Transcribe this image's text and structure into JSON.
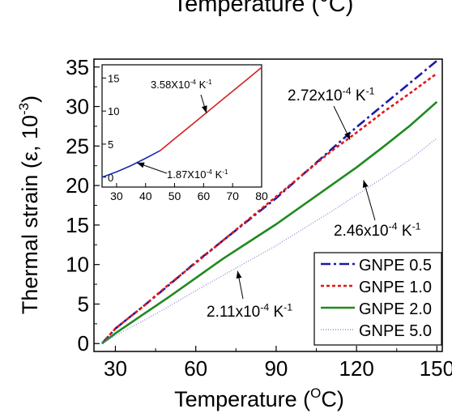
{
  "top_clipped_label": "Temperature (°C)",
  "chart_data": [
    {
      "type": "line",
      "xlabel_main": "Temperature (",
      "xlabel_sup": "O",
      "xlabel_tail": "C)",
      "ylabel": "Thermal strain (ε, 10⁻³)",
      "xlim": [
        22,
        152
      ],
      "ylim": [
        -1,
        36
      ],
      "xticks": [
        30,
        60,
        90,
        120,
        150
      ],
      "yticks": [
        0,
        5,
        10,
        15,
        20,
        25,
        30,
        35
      ],
      "legend_position": "bottom-right",
      "series": [
        {
          "name": "GNPE 0.5",
          "color": "#1a1aa6",
          "dash": "12,4,3,4",
          "x": [
            25,
            30,
            40,
            50,
            60,
            70,
            80,
            90,
            100,
            110,
            120,
            130,
            140,
            150
          ],
          "y": [
            0,
            1.9,
            4.6,
            7.4,
            10.3,
            13.0,
            15.7,
            18.4,
            21.4,
            24.4,
            27.4,
            30.2,
            33.0,
            35.8
          ]
        },
        {
          "name": "GNPE 1.0",
          "color": "#e01818",
          "dash": "4,3",
          "x": [
            25,
            30,
            40,
            50,
            60,
            70,
            80,
            90,
            100,
            110,
            120,
            130,
            140,
            150
          ],
          "y": [
            0,
            1.9,
            4.6,
            7.5,
            10.2,
            13.0,
            15.8,
            18.6,
            21.4,
            24.2,
            26.7,
            29.3,
            31.7,
            34.2
          ]
        },
        {
          "name": "GNPE 2.0",
          "color": "#1f8a1f",
          "dash": "",
          "x": [
            25,
            30,
            40,
            50,
            60,
            70,
            80,
            90,
            100,
            110,
            120,
            130,
            140,
            150
          ],
          "y": [
            0,
            1.3,
            3.6,
            5.9,
            8.3,
            10.7,
            12.9,
            15.1,
            17.5,
            19.9,
            22.3,
            24.9,
            27.6,
            30.6
          ]
        },
        {
          "name": "GNPE 5.0",
          "color": "#9a8ad6",
          "dash": "1,2",
          "x": [
            25,
            30,
            40,
            50,
            60,
            70,
            80,
            90,
            100,
            110,
            120,
            130,
            140,
            150
          ],
          "y": [
            0,
            1.0,
            2.8,
            4.7,
            6.7,
            8.6,
            10.5,
            12.4,
            14.5,
            16.6,
            18.8,
            21.0,
            23.3,
            26.0
          ]
        }
      ],
      "annotations": [
        {
          "base": "2.72x10",
          "exp": "-4",
          "unit": " K",
          "unit_exp": "-1",
          "x_data": 117,
          "y_data": 26.0
        },
        {
          "base": "2.46x10",
          "exp": "-4",
          "unit": " K",
          "unit_exp": "-1",
          "x_data": 122,
          "y_data": 21.0
        },
        {
          "base": "2.11x10",
          "exp": "-4",
          "unit": " K",
          "unit_exp": "-1",
          "x_data": 75,
          "y_data": 9.5
        }
      ]
    },
    {
      "type": "line",
      "xlim": [
        25,
        80
      ],
      "ylim": [
        -1.5,
        17
      ],
      "xticks": [
        30,
        40,
        50,
        60,
        70,
        80
      ],
      "yticks": [
        0,
        5,
        10,
        15
      ],
      "series": [
        {
          "name": "",
          "color": "#1a2ab4",
          "dash": "",
          "x": [
            25,
            30,
            35,
            40,
            45
          ],
          "y": [
            0,
            0.8,
            1.75,
            2.85,
            4.0
          ]
        },
        {
          "name": "",
          "color": "#d42020",
          "dash": "",
          "x": [
            45,
            50,
            55,
            60,
            65,
            70,
            75,
            80
          ],
          "y": [
            4.0,
            5.8,
            7.6,
            9.4,
            11.2,
            13.0,
            14.8,
            16.6
          ]
        }
      ],
      "annotations": [
        {
          "base": "3.58X10",
          "exp": "-4",
          "unit": " K",
          "unit_exp": "-1",
          "x_data": 61,
          "y_data": 9.8
        },
        {
          "base": "1.87X10",
          "exp": "-4",
          "unit": " K",
          "unit_exp": "-1",
          "x_data": 37,
          "y_data": 2.3
        }
      ]
    }
  ]
}
